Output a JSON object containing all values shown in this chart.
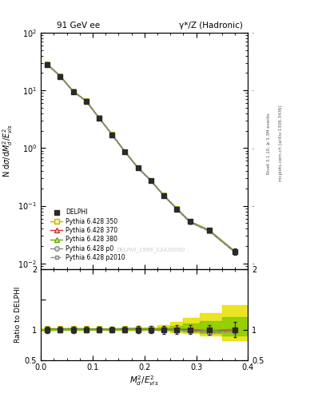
{
  "title_left": "91 GeV ee",
  "title_right": "γ*/Z (Hadronic)",
  "ylabel_main": "N dσ/dM²_d/E²_{vis}",
  "ylabel_ratio": "Ratio to DELPHI",
  "xlabel": "M²_d/E²_{vis}",
  "watermark": "DELPHI_1996_S3430090",
  "right_label": "mcplots.cern.ch [arXiv:1306.3436]",
  "right_label2": "Rivet 3.1.10, ≥ 3.3M events",
  "x_data": [
    0.0125,
    0.0375,
    0.0625,
    0.0875,
    0.1125,
    0.1375,
    0.1625,
    0.1875,
    0.2125,
    0.2375,
    0.2625,
    0.2875,
    0.325,
    0.375
  ],
  "y_delphi": [
    28.0,
    17.5,
    9.5,
    6.5,
    3.3,
    1.7,
    0.85,
    0.45,
    0.27,
    0.15,
    0.088,
    0.053,
    0.038,
    0.016
  ],
  "y_delphi_err": [
    1.5,
    0.8,
    0.5,
    0.3,
    0.15,
    0.08,
    0.04,
    0.025,
    0.015,
    0.01,
    0.006,
    0.004,
    0.003,
    0.002
  ],
  "y_p350": [
    28.5,
    17.8,
    9.7,
    6.6,
    3.35,
    1.72,
    0.87,
    0.46,
    0.275,
    0.152,
    0.09,
    0.054,
    0.038,
    0.016
  ],
  "y_p370": [
    28.3,
    17.6,
    9.6,
    6.55,
    3.32,
    1.71,
    0.86,
    0.455,
    0.272,
    0.15,
    0.089,
    0.053,
    0.037,
    0.016
  ],
  "y_p380": [
    28.4,
    17.7,
    9.65,
    6.58,
    3.33,
    1.715,
    0.865,
    0.458,
    0.273,
    0.151,
    0.0895,
    0.0535,
    0.0375,
    0.0161
  ],
  "y_p0": [
    28.2,
    17.55,
    9.55,
    6.52,
    3.31,
    1.705,
    0.858,
    0.452,
    0.27,
    0.149,
    0.088,
    0.052,
    0.037,
    0.0155
  ],
  "y_p2010": [
    28.1,
    17.5,
    9.52,
    6.5,
    3.3,
    1.7,
    0.855,
    0.45,
    0.269,
    0.148,
    0.0875,
    0.0518,
    0.036,
    0.0154
  ],
  "band_350_lo": [
    0.985,
    0.995,
    0.995,
    0.997,
    0.997,
    0.998,
    0.998,
    0.998,
    0.99,
    0.98,
    0.96,
    0.94,
    0.9,
    0.82
  ],
  "band_350_hi": [
    1.015,
    1.005,
    1.005,
    1.003,
    1.003,
    1.002,
    1.002,
    1.002,
    1.04,
    1.08,
    1.13,
    1.19,
    1.27,
    1.4
  ],
  "band_380_lo": [
    0.99,
    0.997,
    0.997,
    0.998,
    0.998,
    0.999,
    0.999,
    0.999,
    0.995,
    0.99,
    0.978,
    0.965,
    0.945,
    0.905
  ],
  "band_380_hi": [
    1.01,
    1.003,
    1.003,
    1.002,
    1.002,
    1.001,
    1.001,
    1.001,
    1.02,
    1.04,
    1.065,
    1.095,
    1.135,
    1.2
  ],
  "color_delphi": "#2a2a2a",
  "color_p350": "#c8b400",
  "color_p370": "#cc3333",
  "color_p380": "#66aa00",
  "color_p0": "#888888",
  "color_p2010": "#888888",
  "color_band350": "#e8e000",
  "color_band380": "#88cc00",
  "xlim": [
    0.0,
    0.4
  ],
  "ylim_main": [
    0.008,
    100
  ],
  "ylim_ratio": [
    0.5,
    2.0
  ]
}
